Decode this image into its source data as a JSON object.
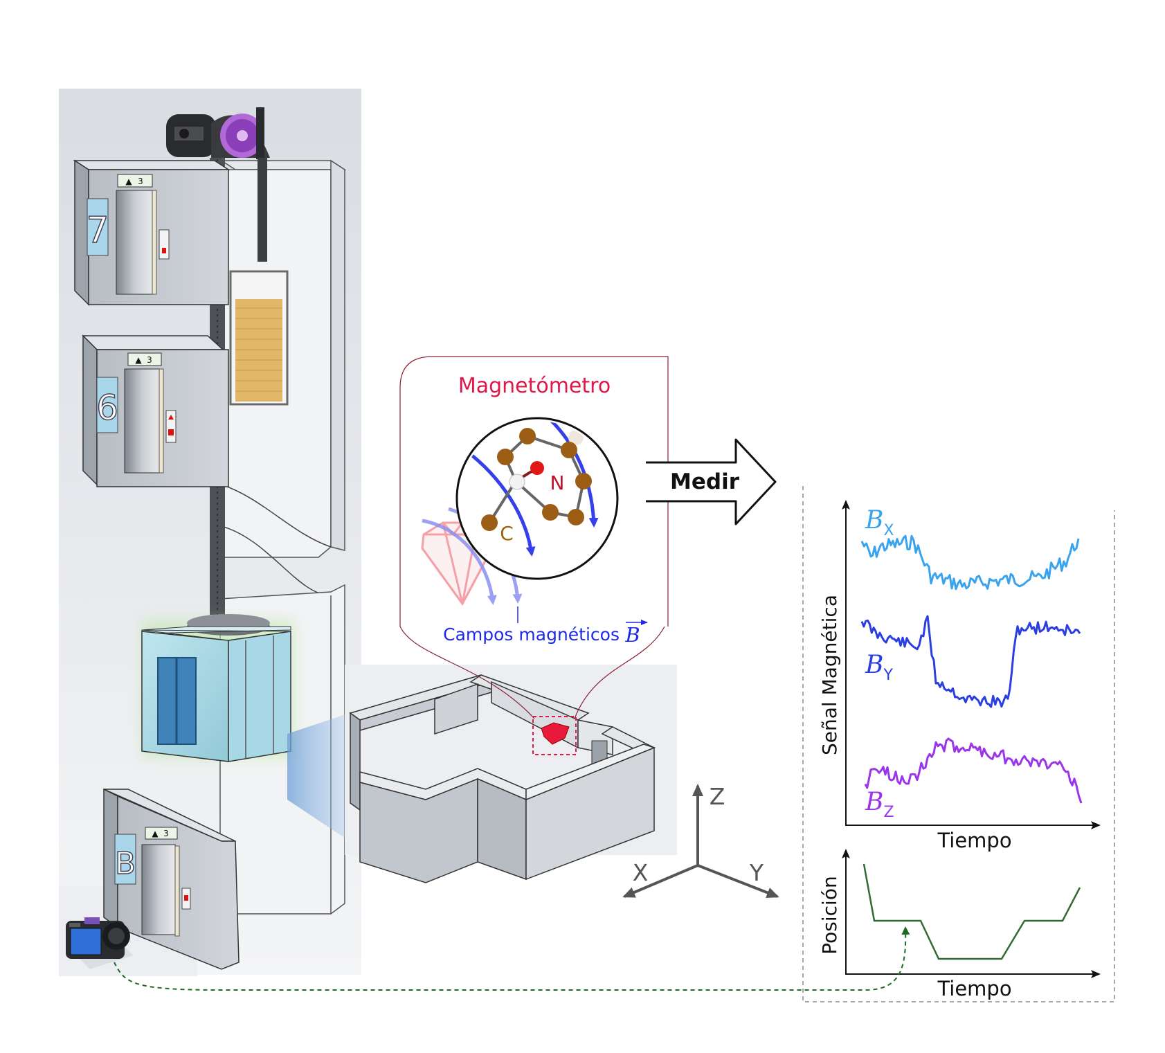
{
  "floors": [
    {
      "number": "7",
      "indicator_arrow": "▲",
      "indicator_num": "3"
    },
    {
      "number": "6",
      "indicator_arrow": "▲",
      "indicator_num": "3"
    },
    {
      "number": "B",
      "indicator_arrow": "▲",
      "indicator_num": "3"
    }
  ],
  "magnetometer": {
    "title": "Magnetómetro",
    "atom_n": "N",
    "atom_c": "C",
    "fields_label": "Campos magnéticos",
    "fields_symbol": "B"
  },
  "measure_label": "Medir",
  "axes3d": {
    "z": "Z",
    "x": "X",
    "y": "Y"
  },
  "signal_panel": {
    "ylabel": "Señal Magnética",
    "xlabel": "Tiempo",
    "bx_main": "B",
    "bx_sub": "X",
    "by_main": "B",
    "by_sub": "Y",
    "bz_main": "B",
    "bz_sub": "Z"
  },
  "position_panel": {
    "ylabel": "Posición",
    "xlabel": "Tiempo"
  },
  "colors": {
    "bx": "#3aa3ee",
    "by": "#2b3ee0",
    "bz": "#9a35ea",
    "position": "#2f6b33",
    "magnetometer_title": "#e0184a",
    "fields": "#1f2be6",
    "atom_n": "#c0102a",
    "atom_c": "#a0620a",
    "camera_link": "#1f6b22"
  }
}
